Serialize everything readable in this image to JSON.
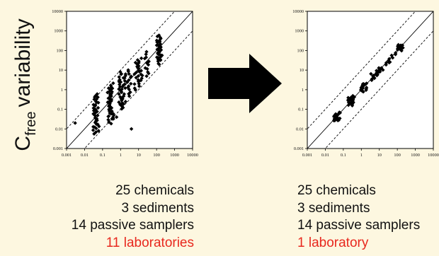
{
  "y_axis_label": {
    "letter": "C",
    "subscript": "free",
    "rest": "variability"
  },
  "arrow_color": "#000000",
  "highlight_color": "#e8281e",
  "left_summary": {
    "chemicals": "25 chemicals",
    "sediments": "3 sediments",
    "samplers": "14 passive samplers",
    "laboratories": "11 laboratories"
  },
  "right_summary": {
    "chemicals": "25 chemicals",
    "sediments": "3 sediments",
    "samplers": "14 passive samplers",
    "laboratories": "1 laboratory"
  },
  "chart_data": [
    {
      "type": "scatter",
      "xscale": "log",
      "yscale": "log",
      "xlim": [
        0.001,
        10000
      ],
      "ylim": [
        0.001,
        10000
      ],
      "xticks": [
        "0.001",
        "0.01",
        "0.1",
        "1",
        "10",
        "100",
        "1000",
        "10000"
      ],
      "yticks": [
        "0.001",
        "0.01",
        "0.1",
        "1",
        "10",
        "100",
        "1000",
        "10000"
      ],
      "reference_lines": [
        {
          "style": "solid",
          "factor": 1
        },
        {
          "style": "dashed",
          "factor": 10
        },
        {
          "style": "dashed",
          "factor": 0.1
        }
      ],
      "clusters": [
        {
          "x": 0.04,
          "y_min": 0.006,
          "y_max": 0.5,
          "n": 22
        },
        {
          "x": 0.05,
          "y_min": 0.01,
          "y_max": 0.6,
          "n": 14
        },
        {
          "x": 0.25,
          "y_min": 0.02,
          "y_max": 1.5,
          "n": 26
        },
        {
          "x": 0.3,
          "y_min": 0.03,
          "y_max": 2,
          "n": 18
        },
        {
          "x": 1.1,
          "y_min": 0.1,
          "y_max": 8,
          "n": 26
        },
        {
          "x": 1.4,
          "y_min": 0.2,
          "y_max": 6,
          "n": 16
        },
        {
          "x": 3,
          "y_min": 0.5,
          "y_max": 10,
          "n": 14
        },
        {
          "x": 8,
          "y_min": 1,
          "y_max": 30,
          "n": 16
        },
        {
          "x": 12,
          "y_min": 2,
          "y_max": 40,
          "n": 14
        },
        {
          "x": 30,
          "y_min": 5,
          "y_max": 80,
          "n": 12
        },
        {
          "x": 130,
          "y_min": 20,
          "y_max": 600,
          "n": 24
        },
        {
          "x": 150,
          "y_min": 30,
          "y_max": 300,
          "n": 12
        }
      ],
      "points": [
        [
          0.003,
          0.02
        ],
        [
          0.06,
          0.008
        ],
        [
          0.6,
          0.04
        ],
        [
          4,
          0.01
        ]
      ]
    },
    {
      "type": "scatter",
      "xscale": "log",
      "yscale": "log",
      "xlim": [
        0.001,
        10000
      ],
      "ylim": [
        0.001,
        10000
      ],
      "xticks": [
        "0.001",
        "0.01",
        "0.1",
        "1",
        "10",
        "100",
        "1000",
        "10000"
      ],
      "yticks": [
        "0.001",
        "0.01",
        "0.1",
        "1",
        "10",
        "100",
        "1000",
        "10000"
      ],
      "reference_lines": [
        {
          "style": "solid",
          "factor": 1
        },
        {
          "style": "dashed",
          "factor": 10
        },
        {
          "style": "dashed",
          "factor": 0.1
        }
      ],
      "clusters": [
        {
          "x": 0.04,
          "y_min": 0.025,
          "y_max": 0.06,
          "n": 16
        },
        {
          "x": 0.05,
          "y_min": 0.03,
          "y_max": 0.07,
          "n": 10
        },
        {
          "x": 0.25,
          "y_min": 0.15,
          "y_max": 0.4,
          "n": 14
        },
        {
          "x": 0.3,
          "y_min": 0.2,
          "y_max": 0.45,
          "n": 10
        },
        {
          "x": 1.2,
          "y_min": 0.8,
          "y_max": 2,
          "n": 14
        },
        {
          "x": 1.5,
          "y_min": 1,
          "y_max": 2.2,
          "n": 8
        },
        {
          "x": 4,
          "y_min": 3,
          "y_max": 6,
          "n": 8
        },
        {
          "x": 8,
          "y_min": 5,
          "y_max": 10,
          "n": 8
        },
        {
          "x": 12,
          "y_min": 8,
          "y_max": 14,
          "n": 8
        },
        {
          "x": 30,
          "y_min": 20,
          "y_max": 35,
          "n": 6
        },
        {
          "x": 60,
          "y_min": 45,
          "y_max": 70,
          "n": 4
        },
        {
          "x": 130,
          "y_min": 100,
          "y_max": 180,
          "n": 14
        },
        {
          "x": 150,
          "y_min": 110,
          "y_max": 200,
          "n": 8
        }
      ],
      "points": []
    }
  ]
}
